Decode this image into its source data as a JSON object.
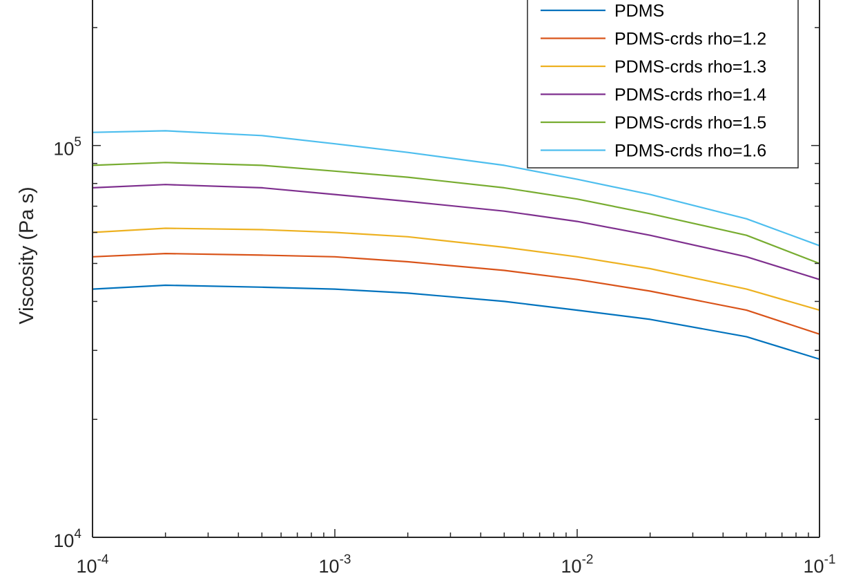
{
  "chart_data": {
    "type": "line",
    "title": "",
    "xlabel": "",
    "ylabel": "Viscosity (Pa s)",
    "xscale": "log",
    "yscale": "log",
    "xlim": [
      0.0001,
      0.1
    ],
    "ylim": [
      10000,
      300000
    ],
    "grid": false,
    "legend_position": "top-right",
    "x_ticks": [
      {
        "value": 0.0001,
        "base": "10",
        "exp": "-4"
      },
      {
        "value": 0.001,
        "base": "10",
        "exp": "-3"
      },
      {
        "value": 0.01,
        "base": "10",
        "exp": "-2"
      },
      {
        "value": 0.1,
        "base": "10",
        "exp": "-1"
      }
    ],
    "y_ticks": [
      {
        "value": 10000,
        "base": "10",
        "exp": "4"
      },
      {
        "value": 100000,
        "base": "10",
        "exp": "5"
      }
    ],
    "x": [
      0.0001,
      0.0002,
      0.0005,
      0.001,
      0.002,
      0.005,
      0.01,
      0.02,
      0.05,
      0.1
    ],
    "series": [
      {
        "name": "PDMS",
        "color": "#0072BD",
        "values": [
          43000,
          44000,
          43500,
          43000,
          42000,
          40000,
          38000,
          36000,
          32500,
          28500
        ]
      },
      {
        "name": "PDMS-crds rho=1.2",
        "color": "#D95319",
        "values": [
          52000,
          53000,
          52500,
          52000,
          50500,
          48000,
          45500,
          42500,
          38000,
          33000
        ]
      },
      {
        "name": "PDMS-crds rho=1.3",
        "color": "#EDB120",
        "values": [
          60000,
          61500,
          61000,
          60000,
          58500,
          55000,
          52000,
          48500,
          43000,
          38000
        ]
      },
      {
        "name": "PDMS-crds rho=1.4",
        "color": "#7E2F8E",
        "values": [
          78000,
          79500,
          78000,
          75000,
          72000,
          68000,
          64000,
          59000,
          52000,
          45500
        ]
      },
      {
        "name": "PDMS-crds rho=1.5",
        "color": "#77AC30",
        "values": [
          89000,
          90500,
          89000,
          86000,
          83000,
          78000,
          73000,
          67000,
          59000,
          50000
        ]
      },
      {
        "name": "PDMS-crds rho=1.6",
        "color": "#4DBEEE",
        "values": [
          108000,
          109000,
          106000,
          101000,
          96000,
          89000,
          82000,
          75000,
          65000,
          55500
        ]
      }
    ]
  }
}
